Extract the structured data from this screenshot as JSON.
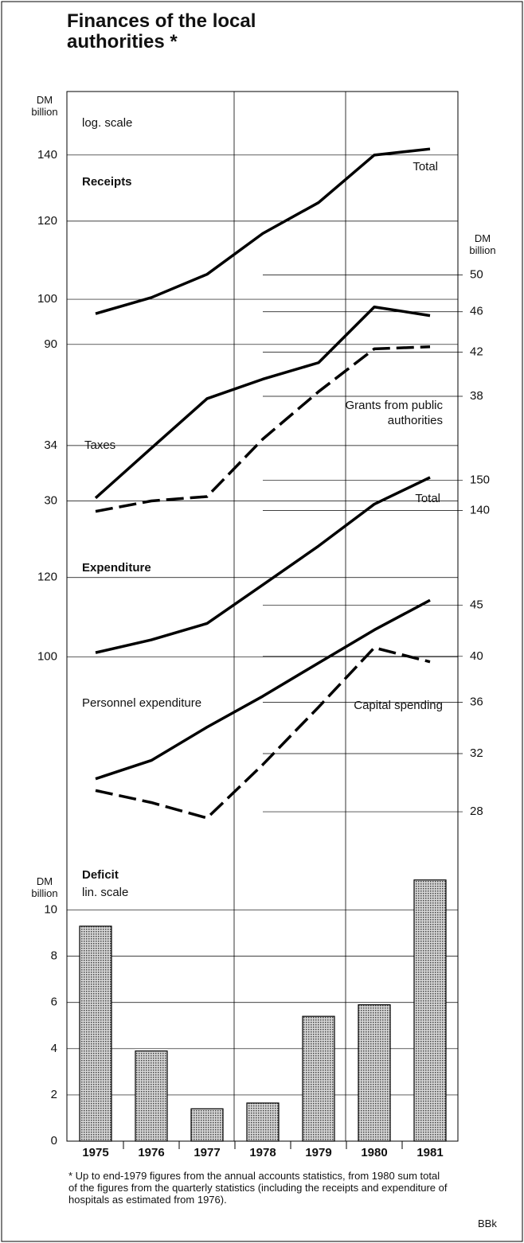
{
  "title": "Finances of the local authorities *",
  "ylabel": "DM billion",
  "scale_note": "log. scale",
  "chart_data": [
    {
      "type": "line",
      "title": "Receipts",
      "log": true,
      "ylim": [
        84,
        155
      ],
      "yticks": [
        90,
        100,
        120,
        140
      ],
      "series": [
        {
          "name": "Total",
          "color": "#000000",
          "dash": false,
          "values": [
            96.7,
            100.4,
            106,
            116.6,
            125.3,
            140,
            142
          ]
        }
      ]
    },
    {
      "type": "line",
      "log": true,
      "ylim": [
        28.4,
        51.4
      ],
      "yticks": [
        30,
        34
      ],
      "y2lim": [
        28.4,
        51.4
      ],
      "y2ticks": [
        38,
        42,
        46,
        50
      ],
      "series": [
        {
          "name": "Taxes",
          "color": "#000000",
          "dash": false,
          "values": [
            30.2,
            33.8,
            37.8,
            39.5,
            41,
            46.5,
            45.6
          ]
        },
        {
          "name": "Grants from public authorities",
          "color": "#000000",
          "dash": true,
          "values": [
            29.3,
            30,
            30.3,
            34.5,
            38.4,
            42.3,
            42.5
          ]
        }
      ]
    },
    {
      "type": "line",
      "title": "Expenditure",
      "log": true,
      "ylim": [
        97.4,
        156.6
      ],
      "yticks": [
        100,
        120
      ],
      "y2lim": [
        97.4,
        156.6
      ],
      "y2ticks": [
        140,
        150
      ],
      "series": [
        {
          "name": "Total",
          "color": "#000000",
          "dash": false,
          "values": [
            101,
            104,
            108,
            118,
            129,
            142,
            151
          ]
        }
      ]
    },
    {
      "type": "line",
      "log": true,
      "ylim": [
        27,
        46.7
      ],
      "y2lim": [
        27,
        46.7
      ],
      "y2ticks": [
        28,
        32,
        36,
        40,
        45
      ],
      "series": [
        {
          "name": "Personnel expenditure",
          "color": "#000000",
          "dash": false,
          "values": [
            30.2,
            31.5,
            34,
            36.5,
            39.4,
            42.5,
            45.5
          ]
        },
        {
          "name": "Capital spending",
          "color": "#000000",
          "dash": true,
          "values": [
            29.4,
            28.6,
            27.6,
            31.2,
            35.6,
            40.8,
            39.5
          ]
        }
      ]
    },
    {
      "type": "bar",
      "title": "Deficit",
      "scale_note": "lin. scale",
      "log": false,
      "ylim": [
        0,
        11.5
      ],
      "yticks": [
        0,
        2,
        4,
        6,
        8,
        10
      ],
      "categories": [
        "1975",
        "1976",
        "1977",
        "1978",
        "1979",
        "1980",
        "1981"
      ],
      "color": "#b0b0b0",
      "values": [
        9.3,
        3.9,
        1.4,
        1.65,
        5.4,
        5.9,
        11.3
      ]
    }
  ],
  "footnote": "* Up to end-1979 figures from the annual accounts statistics, from 1980 sum total of the figures from the quarterly statistics (including the receipts and expenditure of hospitals as estimated from 1976).",
  "source": "BBk"
}
